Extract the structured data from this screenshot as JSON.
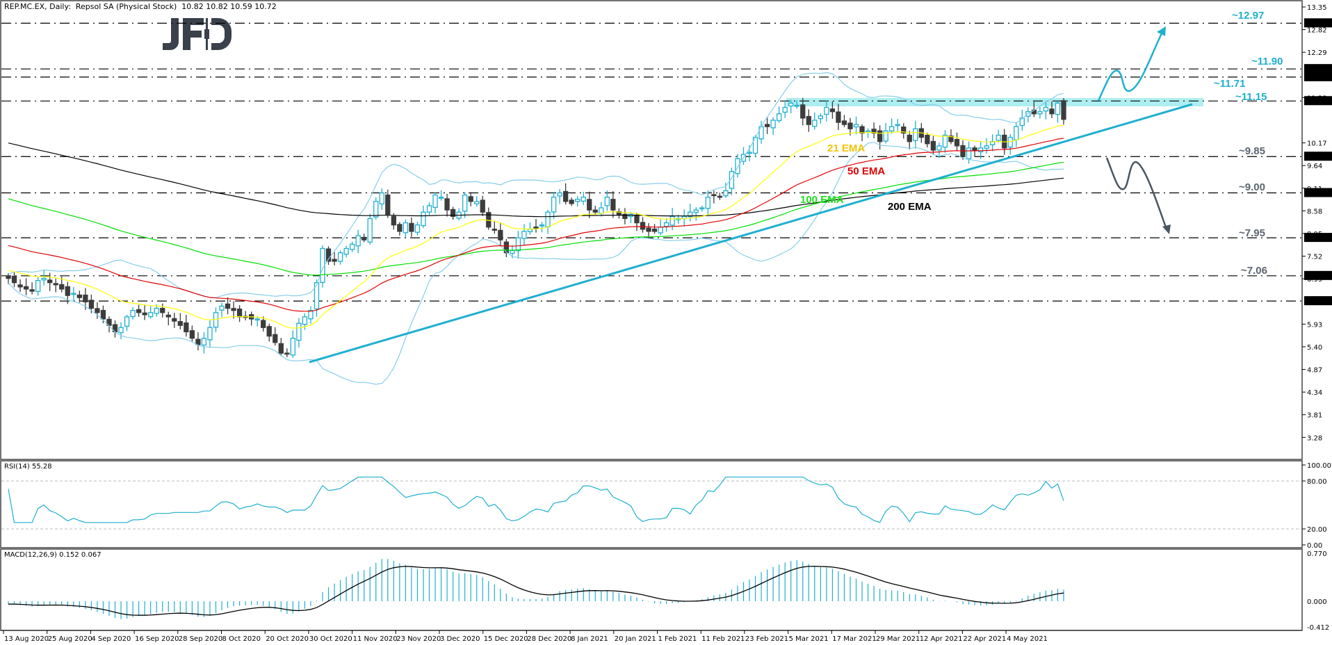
{
  "header": {
    "symbol": "REP.MC.EX",
    "timeframe": "Daily",
    "title": "REP.MC.EX, Daily:  Repsol SA (Physical Stock)  10.82 10.82 10.59 10.72"
  },
  "logo": {
    "text": "JFD",
    "color": "#3a414b"
  },
  "colors": {
    "bull": "#1eafd0",
    "bear": "#3c3c3c",
    "ema21": "#ffff00",
    "ema50": "#e00000",
    "ema100": "#00e000",
    "ema200": "#000000",
    "bollinger": "#87ceeb",
    "trendline": "#1eafd0",
    "zone": "#aeeef0",
    "up_arrow": "#1eafd0",
    "down_arrow": "#4a5560",
    "rsi": "#1eafd0",
    "macd_hist": "#1eafd0",
    "macd_signal": "#000000"
  },
  "panes": {
    "rsi": {
      "label": "RSI(14) 55.28",
      "levels": [
        80,
        20
      ],
      "axis": [
        "100.00",
        "80.00",
        "20.00",
        "0.00"
      ]
    },
    "macd": {
      "label": "MACD(12,26,9) 0.152 0.067",
      "axis": [
        "0.770",
        "0.000",
        "-0.412"
      ]
    }
  },
  "price_axis": [
    "13.35",
    "12.82",
    "12.29",
    "11.23",
    "10.17",
    "9.64",
    "9.11",
    "8.58",
    "8.05",
    "7.52",
    "6.99",
    "5.93",
    "5.40",
    "4.87",
    "4.34",
    "3.81",
    "3.28"
  ],
  "levels": [
    {
      "price": 12.97,
      "label": "12.97",
      "note": "~12.97",
      "note_color": "#1eafd0"
    },
    {
      "price": 11.9,
      "label": "11.90",
      "note": "~11.90",
      "note_color": "#1eafd0"
    },
    {
      "price": 11.71,
      "label": "11.71",
      "note": "~11.71",
      "note_color": "#1eafd0"
    },
    {
      "price": 11.15,
      "label": "11.15",
      "note": "~11.15",
      "note_color": "#1eafd0"
    },
    {
      "price": 9.85,
      "label": "9.85",
      "note": "~9.85",
      "note_color": "#5a6470"
    },
    {
      "price": 9.0,
      "label": "9.00",
      "note": "~9.00",
      "note_color": "#5a6470"
    },
    {
      "price": 7.95,
      "label": "7.95",
      "note": "~7.95",
      "note_color": "#5a6470"
    },
    {
      "price": 7.06,
      "label": "7.06",
      "note": "~7.06",
      "note_color": "#5a6470"
    },
    {
      "price": 6.47,
      "label": "6.47",
      "note": "",
      "note_color": "#5a6470"
    }
  ],
  "ema_labels": [
    {
      "text": "21 EMA",
      "color": "#f5c400"
    },
    {
      "text": "50 EMA",
      "color": "#e00000"
    },
    {
      "text": "100 EMA",
      "color": "#22dd22"
    },
    {
      "text": "200 EMA",
      "color": "#000000"
    }
  ],
  "date_axis": [
    "13 Aug 2020",
    "25 Aug 2020",
    "4 Sep 2020",
    "16 Sep 2020",
    "28 Sep 2020",
    "8 Oct 2020",
    "20 Oct 2020",
    "30 Oct 2020",
    "11 Nov 2020",
    "23 Nov 2020",
    "3 Dec 2020",
    "15 Dec 2020",
    "28 Dec 2020",
    "8 Jan 2021",
    "20 Jan 2021",
    "1 Feb 2021",
    "11 Feb 2021",
    "23 Feb 2021",
    "5 Mar 2021",
    "17 Mar 2021",
    "29 Mar 2021",
    "12 Apr 2021",
    "22 Apr 2021",
    "4 May 2021"
  ],
  "chart_data": {
    "type": "candlestick",
    "title": "REP.MC.EX, Daily: Repsol SA (Physical Stock)",
    "last_ohlc": {
      "open": 10.82,
      "high": 10.82,
      "low": 10.59,
      "close": 10.72
    },
    "ylim": [
      3.0,
      13.5
    ],
    "x_labels": [
      "13 Aug 2020",
      "25 Aug 2020",
      "4 Sep 2020",
      "16 Sep 2020",
      "28 Sep 2020",
      "8 Oct 2020",
      "20 Oct 2020",
      "30 Oct 2020",
      "11 Nov 2020",
      "23 Nov 2020",
      "3 Dec 2020",
      "15 Dec 2020",
      "28 Dec 2020",
      "8 Jan 2021",
      "20 Jan 2021",
      "1 Feb 2021",
      "11 Feb 2021",
      "23 Feb 2021",
      "5 Mar 2021",
      "17 Mar 2021",
      "29 Mar 2021",
      "12 Apr 2021",
      "22 Apr 2021",
      "4 May 2021"
    ],
    "close_path": [
      7.0,
      6.9,
      6.8,
      6.75,
      6.7,
      6.95,
      7.0,
      6.9,
      6.85,
      6.75,
      6.6,
      6.65,
      6.55,
      6.45,
      6.3,
      6.2,
      6.05,
      5.9,
      5.75,
      5.85,
      6.1,
      6.25,
      6.2,
      6.15,
      6.2,
      6.3,
      6.2,
      6.1,
      6.0,
      5.9,
      5.75,
      5.6,
      5.45,
      5.6,
      5.85,
      6.2,
      6.35,
      6.3,
      6.25,
      6.1,
      6.1,
      6.05,
      6.05,
      5.85,
      5.65,
      5.5,
      5.25,
      5.25,
      5.6,
      5.95,
      6.1,
      6.25,
      6.9,
      7.7,
      7.4,
      7.4,
      7.6,
      7.7,
      7.8,
      8.0,
      7.9,
      8.4,
      8.8,
      9.0,
      8.5,
      8.25,
      8.1,
      8.3,
      8.1,
      8.25,
      8.55,
      8.7,
      8.95,
      8.9,
      8.6,
      8.45,
      8.55,
      8.95,
      8.8,
      8.8,
      8.55,
      8.2,
      8.15,
      7.9,
      7.6,
      7.65,
      7.95,
      8.1,
      8.15,
      8.2,
      8.25,
      8.55,
      8.9,
      9.0,
      8.8,
      8.75,
      8.85,
      8.9,
      8.6,
      8.55,
      8.65,
      8.9,
      8.6,
      8.5,
      8.4,
      8.5,
      8.3,
      8.15,
      8.1,
      8.1,
      8.2,
      8.3,
      8.45,
      8.4,
      8.45,
      8.55,
      8.6,
      8.65,
      8.9,
      8.95,
      8.9,
      9.05,
      9.5,
      9.8,
      9.9,
      9.95,
      10.3,
      10.55,
      10.55,
      10.7,
      10.85,
      11.0,
      11.1,
      11.05,
      10.75,
      10.6,
      10.7,
      10.8,
      11.0,
      10.9,
      10.65,
      10.6,
      10.5,
      10.6,
      10.4,
      10.45,
      10.4,
      10.2,
      10.45,
      10.55,
      10.6,
      10.4,
      10.2,
      10.5,
      10.3,
      10.15,
      10.0,
      10.1,
      10.35,
      10.2,
      10.1,
      9.85,
      10.05,
      10.0,
      10.05,
      10.1,
      10.2,
      10.35,
      10.05,
      10.3,
      10.55,
      10.75,
      10.9,
      10.85,
      10.9,
      11.0,
      10.85,
      11.1,
      10.72
    ],
    "indicators": {
      "ema_21": "yellow",
      "ema_50": "red",
      "ema_100": "green",
      "ema_200": "black",
      "bollinger_bands": "light blue",
      "rsi_14_last": 55.28,
      "macd_12_26_9_last": [
        0.152,
        0.067
      ]
    },
    "annotations": {
      "resistance_zone": [
        11.15,
        11.23
      ],
      "uptrend_line": {
        "from": [
          "30 Oct 2020",
          4.98
        ],
        "to": [
          "projected",
          11.15
        ]
      },
      "bullish_target_path": [
        11.15,
        11.9,
        11.71,
        12.97
      ],
      "bearish_target_path": [
        9.85,
        9.0,
        9.64,
        7.95
      ],
      "support_resistance": [
        12.97,
        11.9,
        11.71,
        11.15,
        9.85,
        9.0,
        7.95,
        7.06,
        6.47
      ]
    }
  }
}
